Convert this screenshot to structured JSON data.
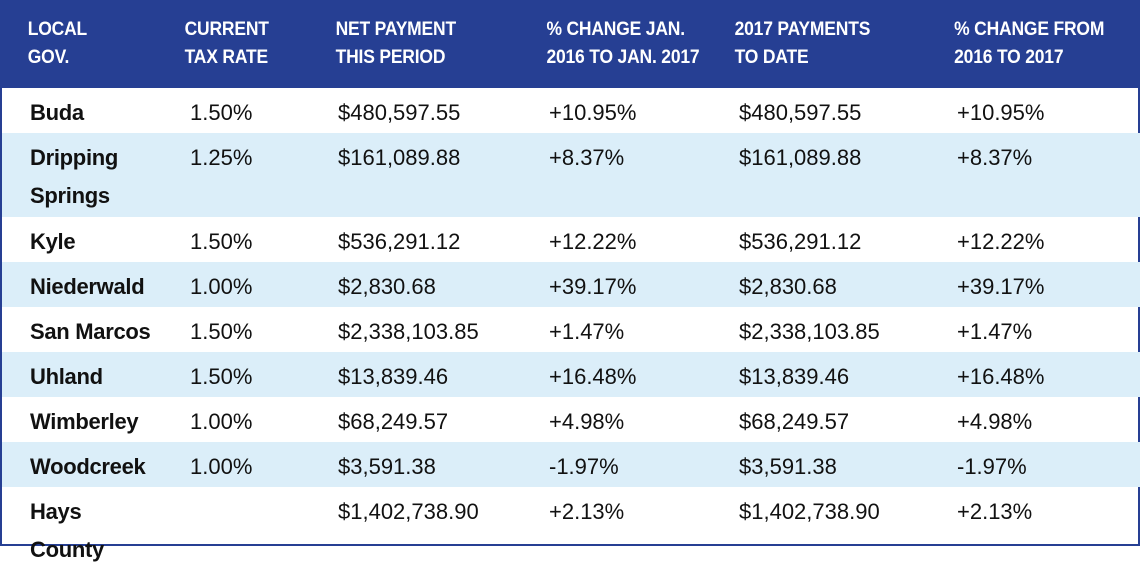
{
  "table": {
    "headers": [
      [
        "LOCAL",
        "GOV."
      ],
      [
        "CURRENT",
        "TAX RATE"
      ],
      [
        "NET PAYMENT",
        "THIS PERIOD"
      ],
      [
        "% CHANGE JAN.",
        "2016 TO JAN. 2017"
      ],
      [
        "2017 PAYMENTS",
        "TO DATE"
      ],
      [
        "% CHANGE FROM",
        "2016 TO 2017"
      ]
    ],
    "rows": [
      [
        "Buda",
        "1.50%",
        "$480,597.55",
        "+10.95%",
        "$480,597.55",
        "+10.95%"
      ],
      [
        "Dripping Springs",
        "1.25%",
        "$161,089.88",
        "+8.37%",
        "$161,089.88",
        "+8.37%"
      ],
      [
        "Kyle",
        "1.50%",
        "$536,291.12",
        "+12.22%",
        "$536,291.12",
        "+12.22%"
      ],
      [
        "Niederwald",
        "1.00%",
        "$2,830.68",
        "+39.17%",
        "$2,830.68",
        "+39.17%"
      ],
      [
        "San Marcos",
        "1.50%",
        "$2,338,103.85",
        "+1.47%",
        "$2,338,103.85",
        "+1.47%"
      ],
      [
        "Uhland",
        "1.50%",
        "$13,839.46",
        "+16.48%",
        "$13,839.46",
        "+16.48%"
      ],
      [
        "Wimberley",
        "1.00%",
        "$68,249.57",
        "+4.98%",
        "$68,249.57",
        "+4.98%"
      ],
      [
        "Woodcreek",
        "1.00%",
        "$3,591.38",
        "-1.97%",
        "$3,591.38",
        "-1.97%"
      ],
      [
        "Hays County",
        "",
        "$1,402,738.90",
        "+2.13%",
        "$1,402,738.90",
        "+2.13%"
      ]
    ]
  },
  "colors": {
    "header_bg": "#263f93",
    "header_text": "#ffffff",
    "stripe_bg": "#dbeef9",
    "row_bg": "#ffffff"
  }
}
